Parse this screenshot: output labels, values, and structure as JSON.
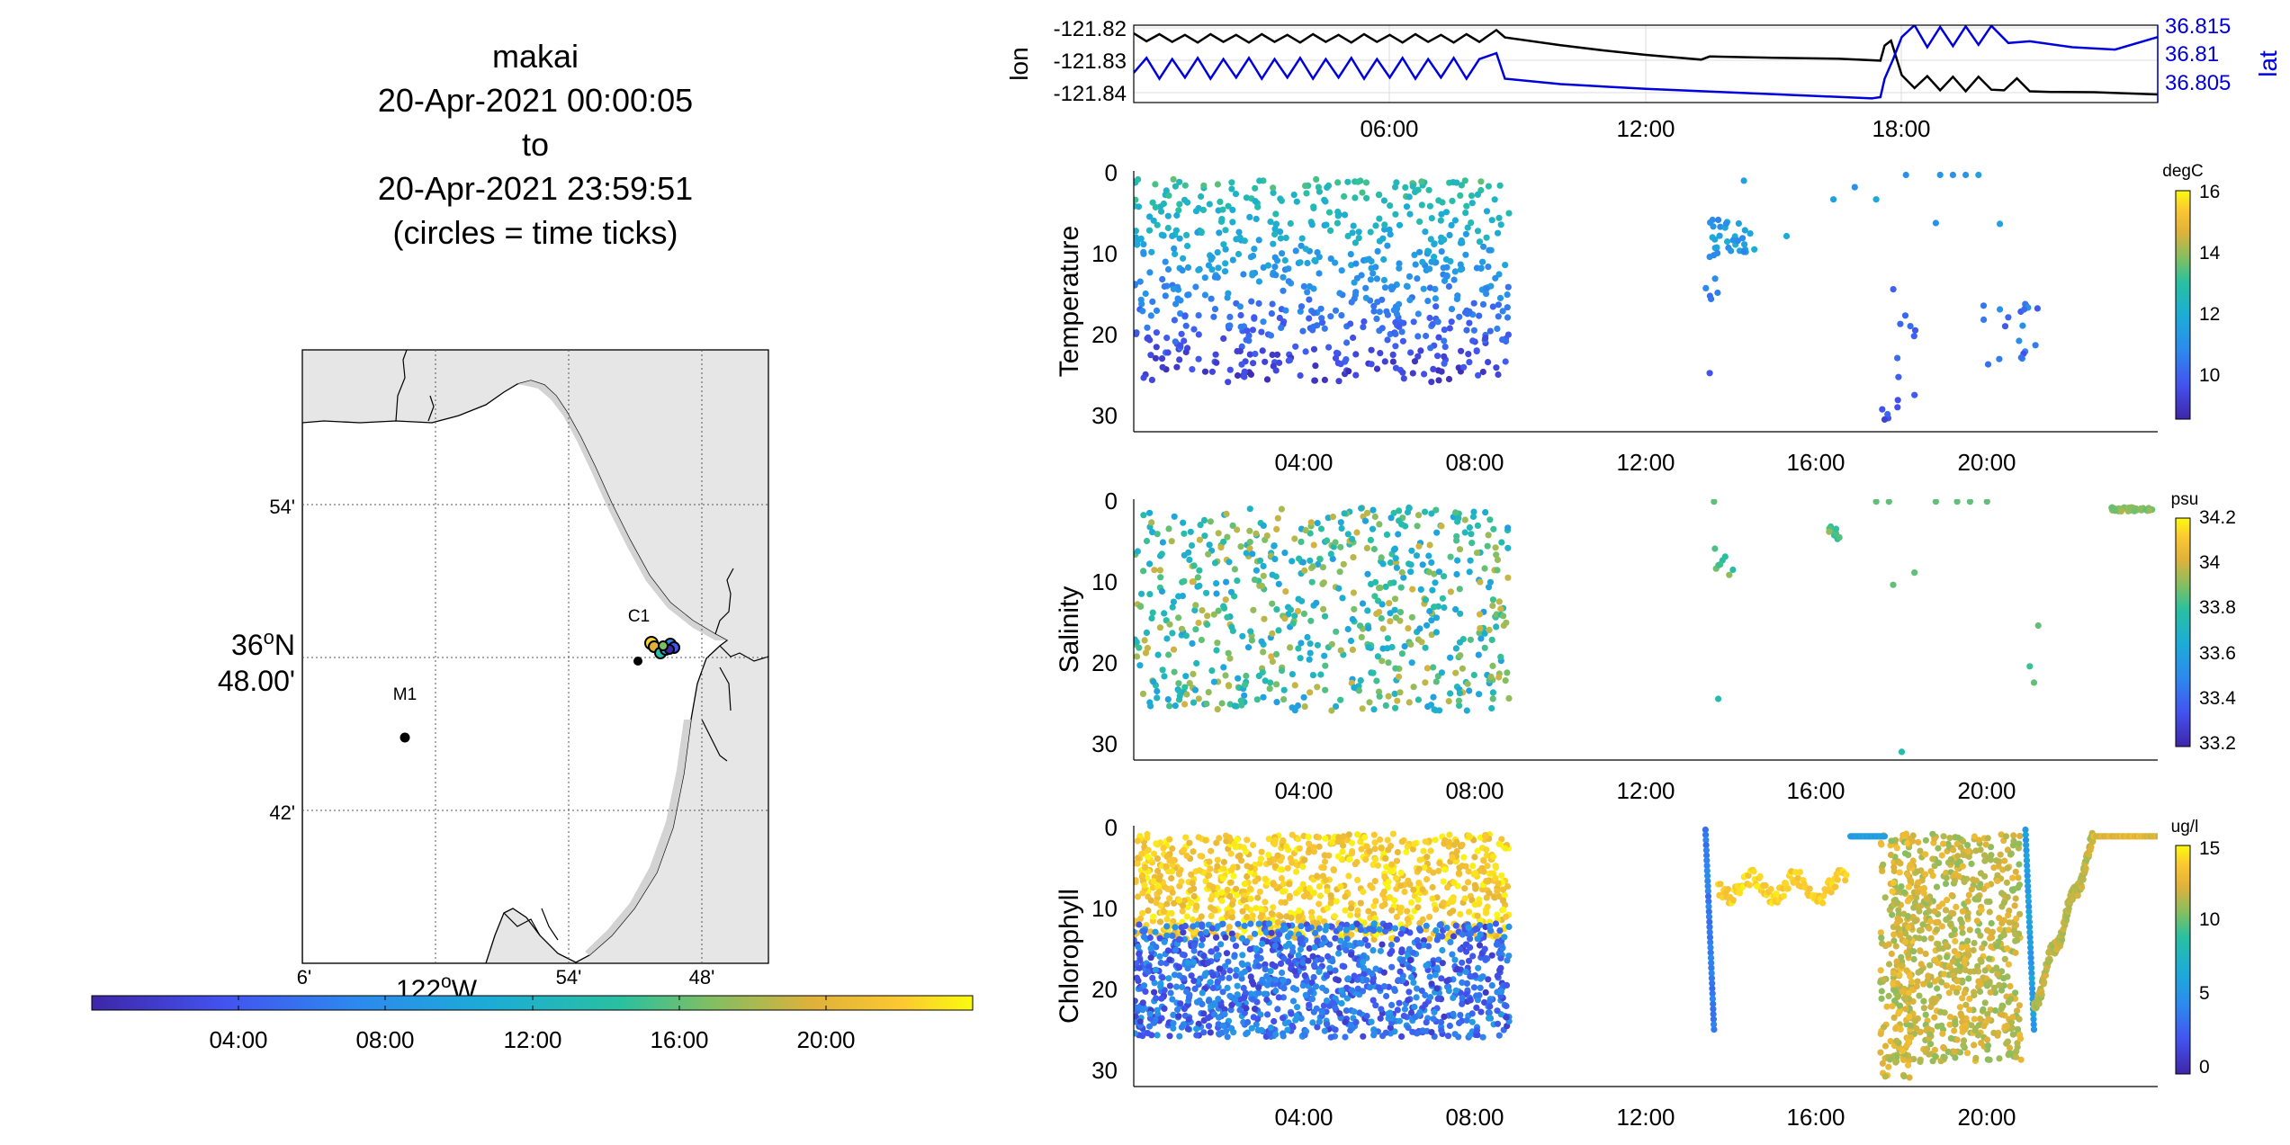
{
  "header": {
    "title_lines": [
      "makai",
      "20-Apr-2021 00:00:05",
      "to",
      "20-Apr-2021 23:59:51",
      "(circles = time ticks)"
    ]
  },
  "map": {
    "lat_ticks": [
      "54'",
      "36°N 48.00'",
      "42'"
    ],
    "lon_ticks": [
      "6'",
      "122°W",
      "54'",
      "48'"
    ],
    "stations": [
      {
        "label": "M1"
      },
      {
        "label": "C1"
      }
    ],
    "land_color": "#e6e6e6"
  },
  "time_colorbar": {
    "ticks": [
      "04:00",
      "08:00",
      "12:00",
      "16:00",
      "20:00"
    ]
  },
  "chart_data": [
    {
      "id": "lonlat",
      "type": "line",
      "x_ticks": [
        "06:00",
        "12:00",
        "18:00"
      ],
      "x_range_hours": [
        0,
        24
      ],
      "left_axis": {
        "label": "lon",
        "ticks": [
          "-121.82",
          "-121.83",
          "-121.84"
        ],
        "ylim": [
          -121.843,
          -121.819
        ]
      },
      "right_axis": {
        "label": "lat",
        "ticks": [
          "36.815",
          "36.81",
          "36.805"
        ],
        "ylim": [
          36.8035,
          36.8165
        ],
        "color": "#0000dd"
      },
      "series": [
        {
          "axis": "left",
          "color": "#000000",
          "points": [
            [
              0,
              -121.8215
            ],
            [
              0.3,
              -121.824
            ],
            [
              0.6,
              -121.8218
            ],
            [
              0.9,
              -121.8242
            ],
            [
              1.2,
              -121.822
            ],
            [
              1.5,
              -121.8244
            ],
            [
              1.8,
              -121.8218
            ],
            [
              2.1,
              -121.8242
            ],
            [
              2.4,
              -121.822
            ],
            [
              2.7,
              -121.8244
            ],
            [
              3.0,
              -121.8218
            ],
            [
              3.3,
              -121.8242
            ],
            [
              3.6,
              -121.822
            ],
            [
              3.9,
              -121.8244
            ],
            [
              4.2,
              -121.8218
            ],
            [
              4.5,
              -121.8242
            ],
            [
              4.8,
              -121.822
            ],
            [
              5.1,
              -121.8244
            ],
            [
              5.4,
              -121.8218
            ],
            [
              5.7,
              -121.8242
            ],
            [
              6.0,
              -121.822
            ],
            [
              6.3,
              -121.8244
            ],
            [
              6.6,
              -121.8218
            ],
            [
              6.9,
              -121.8242
            ],
            [
              7.2,
              -121.822
            ],
            [
              7.5,
              -121.8244
            ],
            [
              7.8,
              -121.8218
            ],
            [
              8.1,
              -121.8242
            ],
            [
              8.5,
              -121.8205
            ],
            [
              8.7,
              -121.8228
            ],
            [
              10,
              -121.8252
            ],
            [
              11,
              -121.8268
            ],
            [
              12,
              -121.8282
            ],
            [
              13.3,
              -121.8297
            ],
            [
              13.5,
              -121.8287
            ],
            [
              15,
              -121.8291
            ],
            [
              16.5,
              -121.8294
            ],
            [
              17.5,
              -121.83
            ],
            [
              17.6,
              -121.8253
            ],
            [
              17.75,
              -121.8238
            ],
            [
              18.0,
              -121.8345
            ],
            [
              18.3,
              -121.8385
            ],
            [
              18.6,
              -121.8348
            ],
            [
              18.9,
              -121.8392
            ],
            [
              19.2,
              -121.835
            ],
            [
              19.5,
              -121.8395
            ],
            [
              19.8,
              -121.835
            ],
            [
              20.1,
              -121.839
            ],
            [
              20.4,
              -121.8392
            ],
            [
              20.7,
              -121.8355
            ],
            [
              21.0,
              -121.8395
            ],
            [
              21.5,
              -121.8397
            ],
            [
              22.5,
              -121.8398
            ],
            [
              24,
              -121.8405
            ]
          ]
        },
        {
          "axis": "right",
          "color": "#0000dd",
          "points": [
            [
              0,
              36.8085
            ],
            [
              0.3,
              36.811
            ],
            [
              0.6,
              36.8075
            ],
            [
              0.9,
              36.8108
            ],
            [
              1.2,
              36.8077
            ],
            [
              1.5,
              36.811
            ],
            [
              1.8,
              36.8075
            ],
            [
              2.1,
              36.8108
            ],
            [
              2.4,
              36.8077
            ],
            [
              2.7,
              36.811
            ],
            [
              3.0,
              36.8075
            ],
            [
              3.3,
              36.8108
            ],
            [
              3.6,
              36.8077
            ],
            [
              3.9,
              36.811
            ],
            [
              4.2,
              36.8075
            ],
            [
              4.5,
              36.8108
            ],
            [
              4.8,
              36.8077
            ],
            [
              5.1,
              36.811
            ],
            [
              5.4,
              36.8075
            ],
            [
              5.7,
              36.8108
            ],
            [
              6.0,
              36.8077
            ],
            [
              6.3,
              36.811
            ],
            [
              6.6,
              36.8075
            ],
            [
              6.9,
              36.8108
            ],
            [
              7.2,
              36.8077
            ],
            [
              7.5,
              36.811
            ],
            [
              7.8,
              36.8075
            ],
            [
              8.1,
              36.8108
            ],
            [
              8.5,
              36.8118
            ],
            [
              8.7,
              36.8075
            ],
            [
              10,
              36.8066
            ],
            [
              12,
              36.8058
            ],
            [
              14,
              36.8052
            ],
            [
              16,
              36.8046
            ],
            [
              17.3,
              36.8042
            ],
            [
              17.5,
              36.8044
            ],
            [
              17.6,
              36.8075
            ],
            [
              17.8,
              36.8108
            ],
            [
              18.0,
              36.8145
            ],
            [
              18.3,
              36.8165
            ],
            [
              18.6,
              36.8128
            ],
            [
              18.9,
              36.8162
            ],
            [
              19.2,
              36.813
            ],
            [
              19.5,
              36.8163
            ],
            [
              19.8,
              36.8132
            ],
            [
              20.1,
              36.8164
            ],
            [
              20.5,
              36.8135
            ],
            [
              21.0,
              36.8138
            ],
            [
              22,
              36.8128
            ],
            [
              23,
              36.8124
            ],
            [
              24,
              36.8145
            ]
          ]
        }
      ]
    },
    {
      "id": "temperature",
      "type": "scatter",
      "ylabel": "Temperature",
      "y_ticks": [
        "0",
        "10",
        "20",
        "30"
      ],
      "ylim": [
        0,
        32
      ],
      "y_reversed": true,
      "x_ticks": [
        "04:00",
        "08:00",
        "12:00",
        "16:00",
        "20:00"
      ],
      "x_range_hours": [
        0,
        24
      ],
      "colorbar": {
        "unit": "degC",
        "ticks": [
          "16",
          "14",
          "12",
          "10"
        ],
        "clim": [
          8.5,
          16
        ]
      },
      "clusters": [
        {
          "t": [
            0,
            8.8
          ],
          "z": [
            1,
            26
          ],
          "c": [
            9,
            13
          ],
          "n": 700,
          "correlated": true
        },
        {
          "t": [
            13.5,
            14.6
          ],
          "z": [
            6,
            10
          ],
          "c": [
            10.5,
            12
          ],
          "n": 30
        },
        {
          "t": [
            13.4,
            13.7
          ],
          "z": [
            10,
            16
          ],
          "c": [
            10,
            11
          ],
          "n": 8
        },
        {
          "t": [
            17.5,
            18.4
          ],
          "z": [
            14,
            31
          ],
          "c": [
            9.5,
            10.5
          ],
          "n": 12
        },
        {
          "t": [
            19.8,
            21.2
          ],
          "z": [
            16,
            24
          ],
          "c": [
            9.5,
            11
          ],
          "n": 20
        }
      ],
      "points": [
        [
          13.5,
          24.8,
          9.6
        ],
        [
          14.3,
          1.2,
          11.5
        ],
        [
          15.3,
          8,
          11.8
        ],
        [
          16.4,
          3.5,
          11.5
        ],
        [
          16.9,
          2,
          11
        ],
        [
          18.1,
          0.5,
          11
        ],
        [
          18.9,
          0.5,
          11.2
        ],
        [
          19.2,
          0.5,
          11
        ],
        [
          19.5,
          0.5,
          11.2
        ],
        [
          19.8,
          0.5,
          11.5
        ],
        [
          18.8,
          6.4,
          11
        ],
        [
          20.3,
          6.5,
          11.5
        ],
        [
          17.4,
          3.5,
          11.8
        ],
        [
          17.9,
          29,
          9.5
        ],
        [
          18.3,
          27.5,
          9.8
        ],
        [
          17.6,
          30.5,
          9.2
        ]
      ]
    },
    {
      "id": "salinity",
      "type": "scatter",
      "ylabel": "Salinity",
      "y_ticks": [
        "0",
        "10",
        "20",
        "30"
      ],
      "ylim": [
        0,
        32
      ],
      "y_reversed": true,
      "x_ticks": [
        "04:00",
        "08:00",
        "12:00",
        "16:00",
        "20:00"
      ],
      "x_range_hours": [
        0,
        24
      ],
      "colorbar": {
        "unit": "psu",
        "ticks": [
          "34.2",
          "34",
          "33.8",
          "33.6",
          "33.4",
          "33.2"
        ],
        "clim": [
          33.2,
          34.25
        ]
      },
      "clusters": [
        {
          "t": [
            0,
            8.8
          ],
          "z": [
            1,
            26
          ],
          "c": [
            33.6,
            34.05
          ],
          "n": 650
        },
        {
          "t": [
            13.6,
            14.1
          ],
          "z": [
            6,
            10
          ],
          "c": [
            33.8,
            33.95
          ],
          "n": 8
        },
        {
          "t": [
            16.3,
            16.6
          ],
          "z": [
            3,
            5
          ],
          "c": [
            33.8,
            34
          ],
          "n": 10
        },
        {
          "t": [
            22.9,
            23.9
          ],
          "z": [
            1,
            1.5
          ],
          "c": [
            33.9,
            34
          ],
          "n": 40
        }
      ],
      "points": [
        [
          13.6,
          0.3,
          33.9
        ],
        [
          13.7,
          24.5,
          33.8
        ],
        [
          17.4,
          0.3,
          33.9
        ],
        [
          17.7,
          0.3,
          33.9
        ],
        [
          18.8,
          0.3,
          33.9
        ],
        [
          19.3,
          0.3,
          33.9
        ],
        [
          19.6,
          0.3,
          33.9
        ],
        [
          20.0,
          0.3,
          33.9
        ],
        [
          17.8,
          10.5,
          33.9
        ],
        [
          18.3,
          9,
          33.9
        ],
        [
          18.0,
          31,
          33.8
        ],
        [
          21.1,
          22.5,
          33.9
        ],
        [
          21.2,
          15.5,
          33.9
        ],
        [
          21.0,
          20.5,
          33.85
        ]
      ]
    },
    {
      "id": "chlorophyll",
      "type": "scatter",
      "ylabel": "Chlorophyll",
      "y_ticks": [
        "0",
        "10",
        "20",
        "30"
      ],
      "ylim": [
        0,
        32
      ],
      "y_reversed": true,
      "x_ticks": [
        "04:00",
        "08:00",
        "12:00",
        "16:00",
        "20:00"
      ],
      "x_range_hours": [
        0,
        24
      ],
      "colorbar": {
        "unit": "ug/l",
        "ticks": [
          "15",
          "10",
          "5",
          "0"
        ],
        "clim": [
          0,
          15.5
        ]
      },
      "clusters": [
        {
          "t": [
            0,
            8.8
          ],
          "z": [
            1,
            14
          ],
          "c": [
            13,
            15.5
          ],
          "n": 900
        },
        {
          "t": [
            0,
            8.8
          ],
          "z": [
            12,
            26
          ],
          "c": [
            1,
            6
          ],
          "n": 1100
        },
        {
          "t": [
            17.8,
            20.8
          ],
          "z": [
            1,
            29
          ],
          "c": [
            11,
            13.5
          ],
          "n": 700
        },
        {
          "t": [
            17.5,
            18.3
          ],
          "z": [
            1,
            31
          ],
          "c": [
            11,
            14
          ],
          "n": 150
        }
      ],
      "traces": [
        {
          "t0": 13.4,
          "t1": 13.6,
          "z0": 0.5,
          "z1": 25,
          "c": 4,
          "n": 40
        },
        {
          "t0": 13.7,
          "t1": 16.7,
          "z0": 7.5,
          "z1": 7.5,
          "c": 14.5,
          "n": 120,
          "wiggle": 2
        },
        {
          "t0": 16.8,
          "t1": 17.6,
          "z0": 1.3,
          "z1": 1.3,
          "c": 6,
          "n": 30
        },
        {
          "t0": 20.9,
          "t1": 21.1,
          "z0": 0.5,
          "z1": 25,
          "c": 6,
          "n": 40
        },
        {
          "t0": 21.1,
          "t1": 22.5,
          "z0": 22,
          "z1": 2,
          "c": 12,
          "n": 200,
          "wiggle": 1.5
        },
        {
          "t0": 22.5,
          "t1": 24,
          "z0": 1.3,
          "z1": 1.3,
          "c": 13,
          "n": 60
        }
      ]
    }
  ]
}
